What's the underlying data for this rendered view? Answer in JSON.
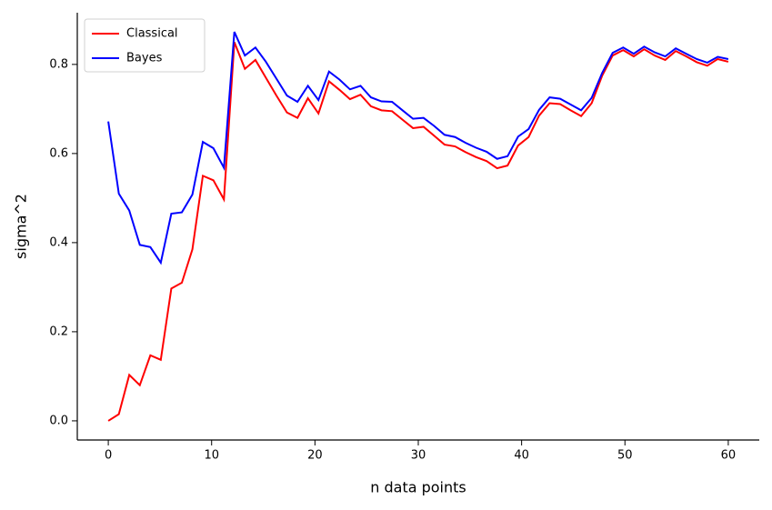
{
  "chart_data": {
    "type": "line",
    "x_label": "n data points",
    "y_label": "sigma^2",
    "x": [
      0,
      1.02,
      2.03,
      3.05,
      4.07,
      5.08,
      6.1,
      7.12,
      8.14,
      9.15,
      10.17,
      11.19,
      12.2,
      13.22,
      14.24,
      15.25,
      16.27,
      17.29,
      18.31,
      19.32,
      20.34,
      21.36,
      22.37,
      23.39,
      24.41,
      25.42,
      26.44,
      27.46,
      28.47,
      29.49,
      30.51,
      31.53,
      32.54,
      33.56,
      34.58,
      35.59,
      36.61,
      37.63,
      38.64,
      39.66,
      40.68,
      41.69,
      42.71,
      43.73,
      44.75,
      45.76,
      46.78,
      47.8,
      48.81,
      49.83,
      50.85,
      51.86,
      52.88,
      53.9,
      54.92,
      55.93,
      56.95,
      57.97,
      58.98,
      60
    ],
    "series": [
      {
        "name": "Classical",
        "color": "#ff0000",
        "values": [
          0.0,
          0.015,
          0.103,
          0.08,
          0.147,
          0.137,
          0.297,
          0.31,
          0.385,
          0.55,
          0.54,
          0.497,
          0.85,
          0.79,
          0.81,
          0.77,
          0.73,
          0.692,
          0.68,
          0.724,
          0.69,
          0.762,
          0.743,
          0.722,
          0.732,
          0.706,
          0.697,
          0.695,
          0.676,
          0.657,
          0.66,
          0.64,
          0.62,
          0.616,
          0.603,
          0.592,
          0.583,
          0.567,
          0.573,
          0.618,
          0.637,
          0.685,
          0.713,
          0.711,
          0.697,
          0.684,
          0.713,
          0.775,
          0.82,
          0.832,
          0.818,
          0.834,
          0.82,
          0.81,
          0.83,
          0.818,
          0.805,
          0.797,
          0.812,
          0.806
        ]
      },
      {
        "name": "Bayes",
        "color": "#0000ff",
        "values": [
          0.672,
          0.51,
          0.472,
          0.395,
          0.39,
          0.355,
          0.465,
          0.468,
          0.508,
          0.626,
          0.612,
          0.568,
          0.873,
          0.82,
          0.838,
          0.806,
          0.768,
          0.73,
          0.716,
          0.752,
          0.72,
          0.784,
          0.766,
          0.744,
          0.752,
          0.726,
          0.717,
          0.716,
          0.697,
          0.678,
          0.68,
          0.662,
          0.642,
          0.637,
          0.624,
          0.613,
          0.604,
          0.588,
          0.594,
          0.638,
          0.655,
          0.698,
          0.726,
          0.723,
          0.71,
          0.697,
          0.725,
          0.781,
          0.826,
          0.838,
          0.824,
          0.84,
          0.827,
          0.818,
          0.836,
          0.824,
          0.812,
          0.804,
          0.817,
          0.812
        ]
      }
    ],
    "xlim": [
      -3,
      63
    ],
    "ylim": [
      -0.043,
      0.916
    ],
    "xticks": [
      0,
      10,
      20,
      30,
      40,
      50,
      60
    ],
    "yticks": [
      {
        "value": 0,
        "label": "0.0"
      },
      {
        "value": 0.2,
        "label": "0.2"
      },
      {
        "value": 0.4,
        "label": "0.4"
      },
      {
        "value": 0.6,
        "label": "0.6"
      },
      {
        "value": 0.8,
        "label": "0.8"
      }
    ],
    "legend": "upper left"
  }
}
